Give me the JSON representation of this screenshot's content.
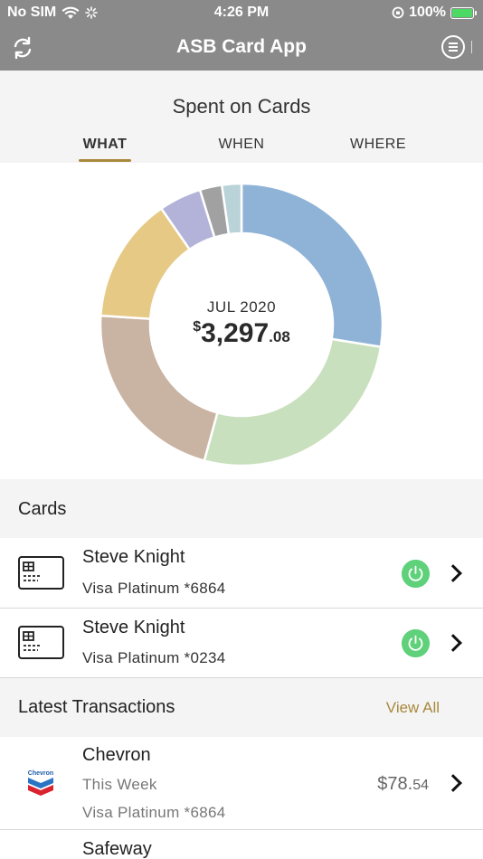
{
  "status": {
    "carrier": "No SIM",
    "time": "4:26 PM",
    "battery": "100%"
  },
  "nav": {
    "title": "ASB Card App"
  },
  "spent": {
    "title": "Spent on Cards",
    "tabs": [
      {
        "label": "WHAT",
        "active": true
      },
      {
        "label": "WHEN",
        "active": false
      },
      {
        "label": "WHERE",
        "active": false
      }
    ],
    "accent_color": "#a8893c"
  },
  "chart_data": {
    "type": "pie",
    "variant": "donut",
    "center_label": "JUL 2020",
    "total": {
      "symbol": "$",
      "main": "3,297",
      "cents": ".08",
      "value": 3297.08
    },
    "segments": [
      {
        "fraction": 0.272,
        "color": "#8fb3d6"
      },
      {
        "fraction": 0.264,
        "color": "#c8e0bd"
      },
      {
        "fraction": 0.215,
        "color": "#c9b3a3"
      },
      {
        "fraction": 0.142,
        "color": "#e6c984"
      },
      {
        "fraction": 0.048,
        "color": "#b3b3da"
      },
      {
        "fraction": 0.025,
        "color": "#a1a1a1"
      },
      {
        "fraction": 0.022,
        "color": "#b9d3d8"
      }
    ]
  },
  "cards_section": {
    "title": "Cards",
    "items": [
      {
        "name": "Steve Knight",
        "card": "Visa Platinum *6864"
      },
      {
        "name": "Steve Knight",
        "card": "Visa Platinum *0234"
      }
    ]
  },
  "transactions_section": {
    "title": "Latest Transactions",
    "view_all": "View All",
    "items": [
      {
        "merchant": "Chevron",
        "logo_text": "Chevron",
        "when": "This Week",
        "card": "Visa Platinum *6864",
        "amount_main": "$78.",
        "amount_cents": "54"
      },
      {
        "merchant": "Safeway"
      }
    ]
  }
}
